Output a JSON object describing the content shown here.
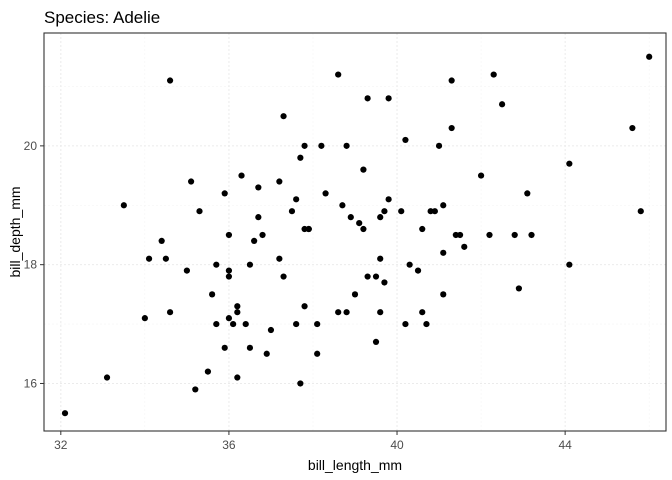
{
  "chart_data": {
    "type": "scatter",
    "title": "Species: Adelie",
    "xlabel": "bill_length_mm",
    "ylabel": "bill_depth_mm",
    "xlim": [
      31.6,
      46.4
    ],
    "ylim": [
      15.2,
      21.9
    ],
    "x_ticks": [
      32,
      36,
      40,
      44
    ],
    "y_ticks": [
      16,
      18,
      20
    ],
    "grid": true,
    "legend": "none",
    "point_color": "#000000",
    "panel_border_color": "#333333",
    "grid_major_color": "#ebebeb",
    "grid_minor_color": "#f5f5f5",
    "x": [
      32.1,
      33.1,
      33.5,
      34.0,
      34.1,
      34.4,
      34.5,
      34.6,
      34.6,
      35.0,
      35.1,
      35.2,
      35.3,
      35.5,
      35.6,
      35.7,
      35.7,
      35.9,
      35.9,
      36.0,
      36.0,
      36.0,
      36.0,
      36.1,
      36.2,
      36.2,
      36.2,
      36.3,
      36.4,
      36.5,
      36.5,
      36.6,
      36.7,
      36.7,
      36.8,
      36.9,
      37.0,
      37.2,
      37.2,
      37.3,
      37.3,
      37.5,
      37.6,
      37.6,
      37.7,
      37.7,
      37.8,
      37.8,
      37.8,
      37.9,
      37.9,
      38.1,
      38.1,
      38.2,
      38.3,
      38.6,
      38.6,
      38.7,
      38.8,
      38.8,
      38.9,
      39.0,
      39.1,
      39.2,
      39.2,
      39.3,
      39.3,
      39.5,
      39.5,
      39.6,
      39.6,
      39.6,
      39.7,
      39.7,
      39.8,
      39.8,
      40.1,
      40.2,
      40.2,
      40.3,
      40.5,
      40.6,
      40.6,
      40.7,
      40.8,
      40.9,
      41.0,
      41.1,
      41.1,
      41.1,
      41.3,
      41.3,
      41.4,
      41.5,
      41.6,
      42.0,
      42.2,
      42.3,
      42.5,
      42.8,
      42.9,
      43.1,
      43.2,
      44.1,
      44.1,
      45.6,
      45.8,
      46.0
    ],
    "y": [
      15.5,
      16.1,
      19.0,
      17.1,
      18.1,
      18.4,
      18.1,
      21.1,
      17.2,
      17.9,
      19.4,
      15.9,
      18.9,
      16.2,
      17.5,
      17.0,
      18.0,
      16.6,
      19.2,
      17.8,
      17.1,
      18.5,
      17.9,
      17.0,
      17.3,
      16.1,
      17.2,
      19.5,
      17.0,
      18.0,
      16.6,
      18.4,
      18.8,
      19.3,
      18.5,
      16.5,
      16.9,
      18.1,
      19.4,
      17.8,
      20.5,
      18.9,
      17.0,
      19.1,
      16.0,
      19.8,
      17.3,
      20.0,
      18.6,
      18.6,
      18.6,
      17.0,
      16.5,
      20.0,
      19.2,
      17.2,
      21.2,
      19.0,
      20.0,
      17.2,
      18.8,
      17.5,
      18.7,
      19.6,
      18.6,
      17.8,
      20.8,
      16.7,
      17.8,
      17.2,
      18.1,
      18.8,
      17.7,
      18.9,
      19.1,
      20.8,
      18.9,
      17.0,
      20.1,
      18.0,
      17.9,
      18.6,
      17.2,
      17.0,
      18.9,
      18.9,
      20.0,
      19.0,
      18.2,
      17.5,
      20.3,
      21.1,
      18.5,
      18.5,
      18.3,
      19.5,
      18.5,
      21.2,
      20.7,
      18.5,
      17.6,
      19.2,
      18.5,
      19.7,
      18.0,
      20.3,
      18.9,
      21.5
    ]
  }
}
